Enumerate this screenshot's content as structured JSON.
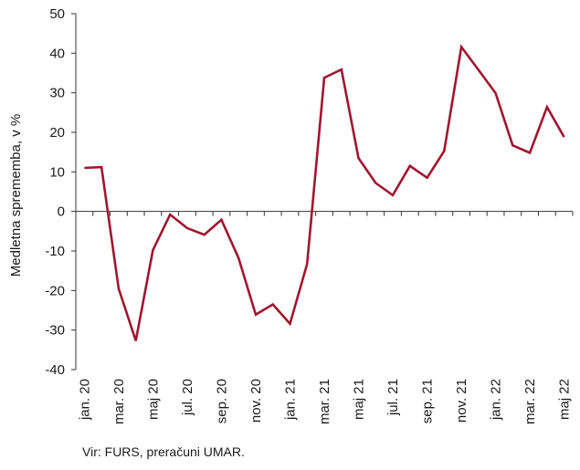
{
  "chart_data": {
    "type": "line",
    "ylabel": "Medletna sprememba, v %",
    "ylim": [
      -40,
      50
    ],
    "yticks": [
      -40,
      -30,
      -20,
      -10,
      0,
      10,
      20,
      30,
      40,
      50
    ],
    "ytick_labels": [
      "-40",
      "-30",
      "-20",
      "-10",
      "0",
      "10",
      "20",
      "30",
      "40",
      "50"
    ],
    "grid": false,
    "x": [
      "jan. 20",
      "feb. 20",
      "mar. 20",
      "apr. 20",
      "maj 20",
      "jun. 20",
      "jul. 20",
      "avg. 20",
      "sep. 20",
      "okt. 20",
      "nov. 20",
      "dec. 20",
      "jan. 21",
      "feb. 21",
      "mar. 21",
      "apr. 21",
      "maj 21",
      "jun. 21",
      "jul. 21",
      "avg. 21",
      "sep. 21",
      "okt. 21",
      "nov. 21",
      "dec. 21",
      "jan. 22",
      "feb. 22",
      "mar. 22",
      "apr. 22",
      "maj 22"
    ],
    "xtick_labels": [
      "jan. 20",
      "mar. 20",
      "maj 20",
      "jul. 20",
      "sep. 20",
      "nov. 20",
      "jan. 21",
      "mar. 21",
      "maj 21",
      "jul. 21",
      "sep. 21",
      "nov. 21",
      "jan. 22",
      "mar. 22",
      "maj 22"
    ],
    "series": [
      {
        "color": "#a0162f",
        "values": [
          11.0,
          11.2,
          -19.5,
          -32.7,
          -9.8,
          -0.8,
          -4.2,
          -5.9,
          -2.1,
          -11.8,
          -26.1,
          -23.5,
          -28.4,
          -13.3,
          33.8,
          35.9,
          13.5,
          7.2,
          4.1,
          11.5,
          8.5,
          15.3,
          41.6,
          35.8,
          29.9,
          16.7,
          14.8,
          26.4,
          18.8
        ]
      }
    ]
  },
  "source_text": "Vir: FURS, preračuni UMAR."
}
